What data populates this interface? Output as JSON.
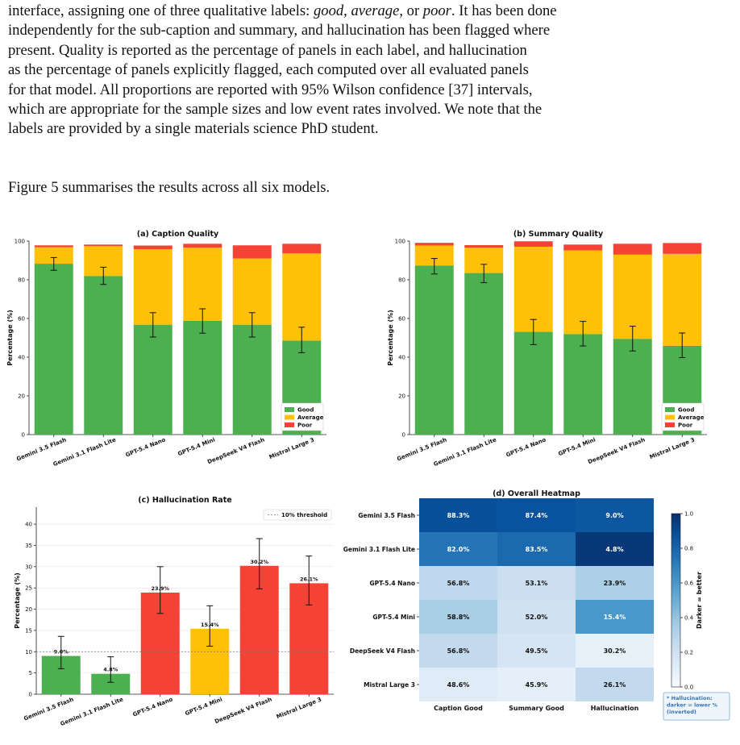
{
  "paragraph1": {
    "l1_a": "interface, assigning one of three qualitative labels: ",
    "l1_good": "good",
    "l1_b": ", ",
    "l1_average": "average",
    "l1_c": ", or ",
    "l1_poor": "poor",
    "l1_d": ". It has been done",
    "l2": "independently for the sub-caption and summary, and hallucination has been flagged where",
    "l3": "present. Quality is reported as the percentage of panels in each label, and hallucination",
    "l4": "as the percentage of panels explicitly flagged, each computed over all evaluated panels",
    "l5": "for that model. All proportions are reported with 95% Wilson confidence [37] intervals,",
    "l6": "which are appropriate for the sample sizes and low event rates involved. We note that the",
    "l7": "labels are provided by a single materials science PhD student."
  },
  "paragraph2": "Figure 5 summarises the results across all six models.",
  "colors": {
    "good": "#4caf50",
    "average": "#ffc107",
    "poor": "#f44336"
  },
  "chart_data": [
    {
      "id": "a",
      "type": "bar",
      "stacked": true,
      "title": "(a) Caption Quality",
      "ylabel": "Percentage (%)",
      "ylim": [
        0,
        100
      ],
      "yticks": [
        0,
        20,
        40,
        60,
        80,
        100
      ],
      "categories": [
        "Gemini 3.5 Flash",
        "Gemini 3.1 Flash Lite",
        "GPT-5.4 Nano",
        "GPT-5.4 Mini",
        "DeepSeek V4 Flash",
        "Mistral Large 3"
      ],
      "series": [
        {
          "name": "Good",
          "values": [
            88.3,
            82.0,
            56.8,
            58.8,
            56.8,
            48.6
          ]
        },
        {
          "name": "Average",
          "values": [
            8.5,
            15.4,
            39.0,
            37.8,
            34.2,
            45.0
          ]
        },
        {
          "name": "Poor",
          "values": [
            1.0,
            0.8,
            1.9,
            2.0,
            6.8,
            5.0
          ]
        }
      ],
      "error_bars": {
        "series": "Good",
        "lower": [
          84.9,
          77.6,
          50.4,
          52.4,
          50.4,
          42.3
        ],
        "upper": [
          91.5,
          86.5,
          63.0,
          65.0,
          63.0,
          55.5
        ]
      },
      "legend": [
        "Good",
        "Average",
        "Poor"
      ],
      "legend_position": "lower-right"
    },
    {
      "id": "b",
      "type": "bar",
      "stacked": true,
      "title": "(b) Summary Quality",
      "ylabel": "Percentage (%)",
      "ylim": [
        0,
        100
      ],
      "yticks": [
        0,
        20,
        40,
        60,
        80,
        100
      ],
      "categories": [
        "Gemini 3.5 Flash",
        "Gemini 3.1 Flash Lite",
        "GPT-5.4 Nano",
        "GPT-5.4 Mini",
        "DeepSeek V4 Flash",
        "Mistral Large 3"
      ],
      "series": [
        {
          "name": "Good",
          "values": [
            87.4,
            83.5,
            53.1,
            52.0,
            49.5,
            45.9
          ]
        },
        {
          "name": "Average",
          "values": [
            10.3,
            13.1,
            44.0,
            43.2,
            43.5,
            47.5
          ]
        },
        {
          "name": "Poor",
          "values": [
            1.4,
            1.3,
            2.8,
            3.0,
            5.6,
            5.6
          ]
        }
      ],
      "error_bars": {
        "series": "Good",
        "lower": [
          83.0,
          78.5,
          46.5,
          45.8,
          43.2,
          39.8
        ],
        "upper": [
          91.0,
          88.0,
          59.5,
          58.5,
          56.0,
          52.5
        ]
      },
      "legend": [
        "Good",
        "Average",
        "Poor"
      ],
      "legend_position": "lower-right"
    },
    {
      "id": "c",
      "type": "bar",
      "title": "(c) Hallucination Rate",
      "ylabel": "Percentage (%)",
      "ylim": [
        0,
        44
      ],
      "yticks": [
        0,
        5,
        10,
        15,
        20,
        25,
        30,
        35,
        40
      ],
      "categories": [
        "Gemini 3.5 Flash",
        "Gemini 3.1 Flash Lite",
        "GPT-5.4 Nano",
        "GPT-5.4 Mini",
        "DeepSeek V4 Flash",
        "Mistral Large 3"
      ],
      "values": [
        9.0,
        4.8,
        23.9,
        15.4,
        30.2,
        26.1
      ],
      "value_labels": [
        "9.0%",
        "4.8%",
        "23.9%",
        "15.4%",
        "30.2%",
        "26.1%"
      ],
      "bar_colors": [
        "#4caf50",
        "#4caf50",
        "#f44336",
        "#ffc107",
        "#f44336",
        "#f44336"
      ],
      "error_bars": {
        "lower": [
          6.0,
          2.8,
          19.0,
          11.3,
          24.8,
          21.0
        ],
        "upper": [
          13.6,
          8.8,
          30.0,
          20.8,
          36.6,
          32.5
        ]
      },
      "threshold": {
        "value": 10,
        "label": "10% threshold"
      },
      "legend_position": "top-right"
    },
    {
      "id": "d",
      "type": "heatmap",
      "title": "(d) Overall Heatmap",
      "rows": [
        "Gemini 3.5 Flash",
        "Gemini 3.1 Flash Lite",
        "GPT-5.4 Nano",
        "GPT-5.4 Mini",
        "DeepSeek V4 Flash",
        "Mistral Large 3"
      ],
      "columns": [
        "Caption Good",
        "Summary Good",
        "Hallucination"
      ],
      "cell_labels": [
        [
          "88.3%",
          "87.4%",
          "9.0%"
        ],
        [
          "82.0%",
          "83.5%",
          "4.8%"
        ],
        [
          "56.8%",
          "53.1%",
          "23.9%"
        ],
        [
          "58.8%",
          "52.0%",
          "15.4%"
        ],
        [
          "56.8%",
          "49.5%",
          "30.2%"
        ],
        [
          "48.6%",
          "45.9%",
          "26.1%"
        ]
      ],
      "color_values": [
        [
          0.88,
          0.87,
          0.85
        ],
        [
          0.74,
          0.78,
          0.97
        ],
        [
          0.27,
          0.22,
          0.33
        ],
        [
          0.34,
          0.2,
          0.6
        ],
        [
          0.26,
          0.17,
          0.08
        ],
        [
          0.12,
          0.09,
          0.26
        ]
      ],
      "colorbar": {
        "label": "Darker = better",
        "ticks": [
          "0.0",
          "0.2",
          "0.4",
          "0.6",
          "0.8",
          "1.0"
        ],
        "range": [
          0,
          1
        ]
      },
      "note": [
        "* Hallucination:",
        "darker = lower %",
        "(inverted)"
      ]
    }
  ]
}
